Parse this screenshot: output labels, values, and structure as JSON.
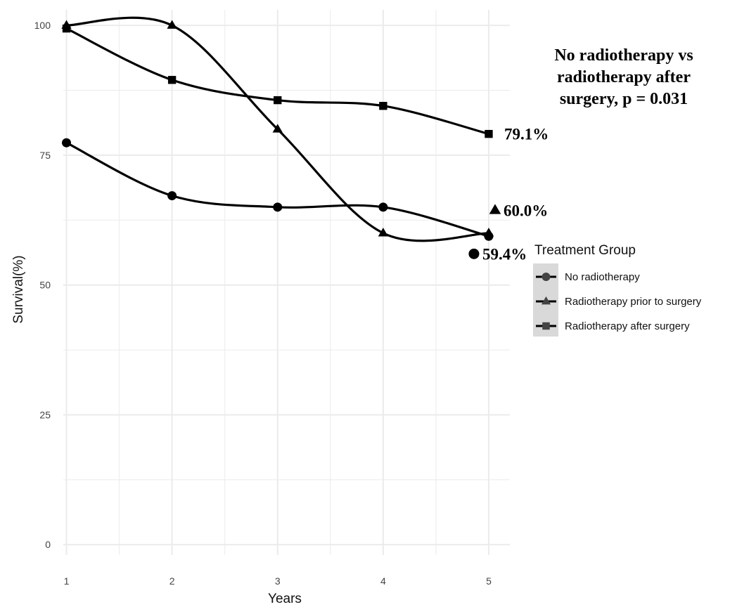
{
  "chart_data": {
    "type": "line",
    "xlabel": "Years",
    "ylabel": "Survival(%)",
    "x": [
      1,
      2,
      3,
      4,
      5
    ],
    "xlim": [
      0.97,
      5.2
    ],
    "ylim": [
      -2,
      103
    ],
    "x_ticks": [
      "1",
      "2",
      "3",
      "4",
      "5"
    ],
    "y_ticks": [
      "0",
      "25",
      "50",
      "75",
      "100"
    ],
    "y_tick_values": [
      0,
      25,
      50,
      75,
      100
    ],
    "grid": true,
    "series": [
      {
        "name": "No radiotherapy",
        "marker": "circle",
        "values": [
          77.4,
          67.2,
          65.0,
          65.0,
          59.4
        ]
      },
      {
        "name": "Radiotherapy prior to surgery",
        "marker": "triangle",
        "values": [
          100.0,
          100.0,
          80.0,
          60.0,
          60.0
        ]
      },
      {
        "name": "Radiotherapy after surgery",
        "marker": "square",
        "values": [
          99.4,
          89.5,
          85.6,
          84.5,
          79.1
        ]
      }
    ],
    "annotation": [
      "No radiotherapy vs",
      "radiotherapy after",
      "surgery, p = 0.031"
    ],
    "end_labels": [
      {
        "text": "79.1%",
        "marker": "none",
        "x": 5,
        "y": 79.1
      },
      {
        "text": "60.0%",
        "marker": "triangle",
        "x": 5,
        "y": 64.4
      },
      {
        "text": "59.4%",
        "marker": "circle",
        "x": 4.8,
        "y": 56.0
      }
    ],
    "legend": {
      "title": "Treatment Group",
      "position": "right"
    },
    "line_color": "#000000",
    "grid_color": "#ebebeb"
  }
}
